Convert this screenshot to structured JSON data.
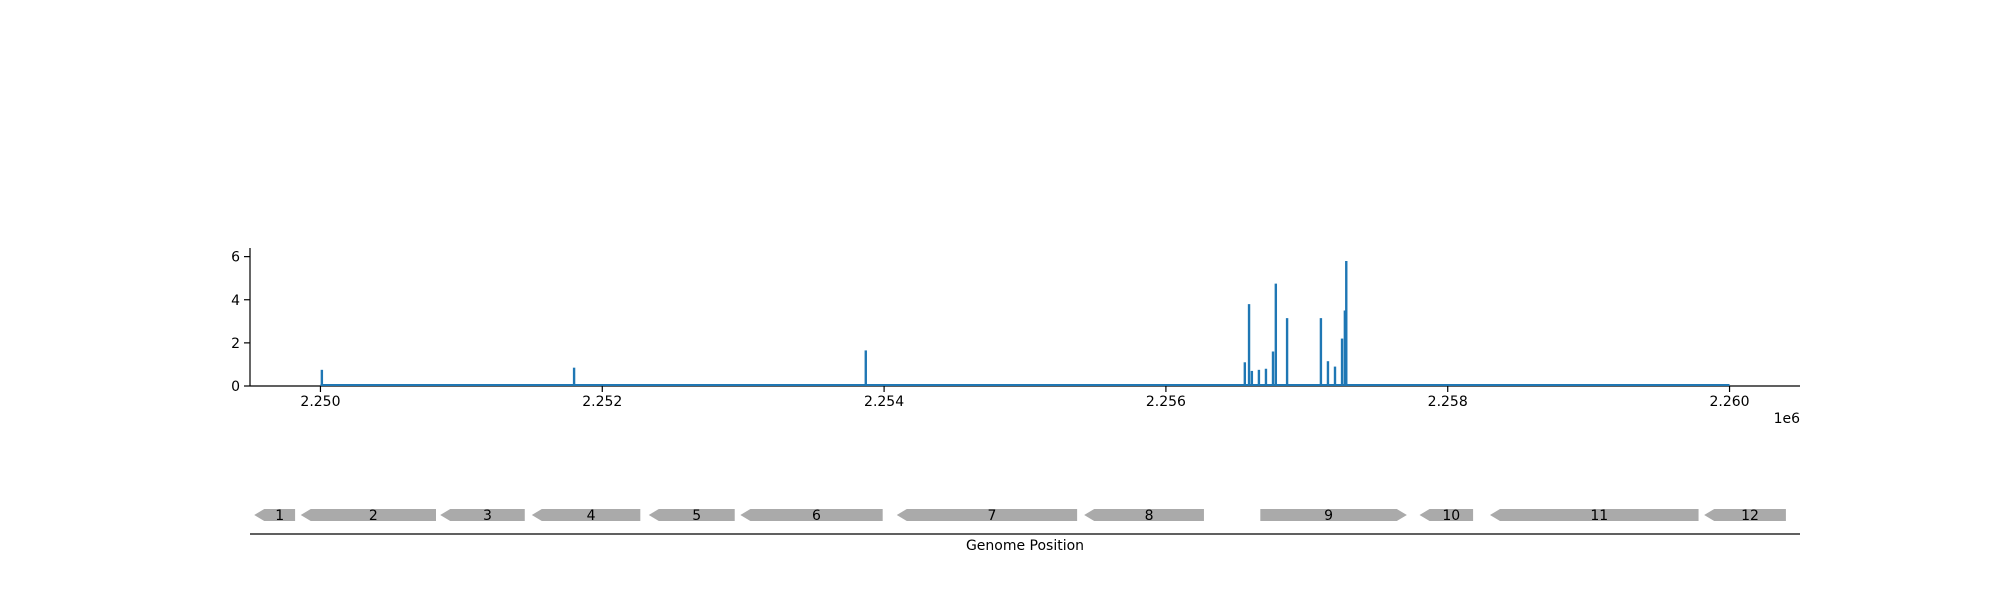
{
  "chart_data": [
    {
      "type": "bar",
      "title": "",
      "xlabel": "",
      "ylabel": "",
      "xlim": [
        2249500,
        2260500
      ],
      "ylim": [
        0,
        6.4
      ],
      "x_ticks": [
        2250000,
        2252000,
        2254000,
        2256000,
        2258000,
        2260000
      ],
      "x_tick_labels": [
        "2.250",
        "2.252",
        "2.254",
        "2.256",
        "2.258",
        "2.260"
      ],
      "x_offset_label": "1e6",
      "y_ticks": [
        0,
        2,
        4,
        6
      ],
      "y_tick_labels": [
        "0",
        "2",
        "4",
        "6"
      ],
      "baseline_range": [
        2250000,
        2260000
      ],
      "color": "#1f77b4",
      "x": [
        2250010,
        2251800,
        2253870,
        2256560,
        2256590,
        2256610,
        2256660,
        2256710,
        2256760,
        2256780,
        2256860,
        2257100,
        2257150,
        2257200,
        2257250,
        2257270,
        2257280
      ],
      "values": [
        0.75,
        0.85,
        1.65,
        1.1,
        3.8,
        0.7,
        0.75,
        0.8,
        1.6,
        4.75,
        3.15,
        3.15,
        1.15,
        0.9,
        2.2,
        3.5,
        5.8
      ]
    },
    {
      "type": "gene-track",
      "xlabel": "Genome Position",
      "color": "#aaaaaa",
      "genes": [
        {
          "label": "1",
          "start": 2249530,
          "end": 2249820,
          "strand": "-"
        },
        {
          "label": "2",
          "start": 2249860,
          "end": 2250820,
          "strand": "-"
        },
        {
          "label": "3",
          "start": 2250850,
          "end": 2251450,
          "strand": "-"
        },
        {
          "label": "4",
          "start": 2251500,
          "end": 2252270,
          "strand": "-"
        },
        {
          "label": "5",
          "start": 2252330,
          "end": 2252940,
          "strand": "-"
        },
        {
          "label": "6",
          "start": 2252980,
          "end": 2253990,
          "strand": "-"
        },
        {
          "label": "7",
          "start": 2254090,
          "end": 2255370,
          "strand": "-"
        },
        {
          "label": "8",
          "start": 2255420,
          "end": 2256270,
          "strand": "-"
        },
        {
          "label": "9",
          "start": 2256670,
          "end": 2257710,
          "strand": "+"
        },
        {
          "label": "10",
          "start": 2257800,
          "end": 2258180,
          "strand": "-"
        },
        {
          "label": "11",
          "start": 2258300,
          "end": 2259780,
          "strand": "-"
        },
        {
          "label": "12",
          "start": 2259820,
          "end": 2260400,
          "strand": "-"
        }
      ]
    }
  ]
}
